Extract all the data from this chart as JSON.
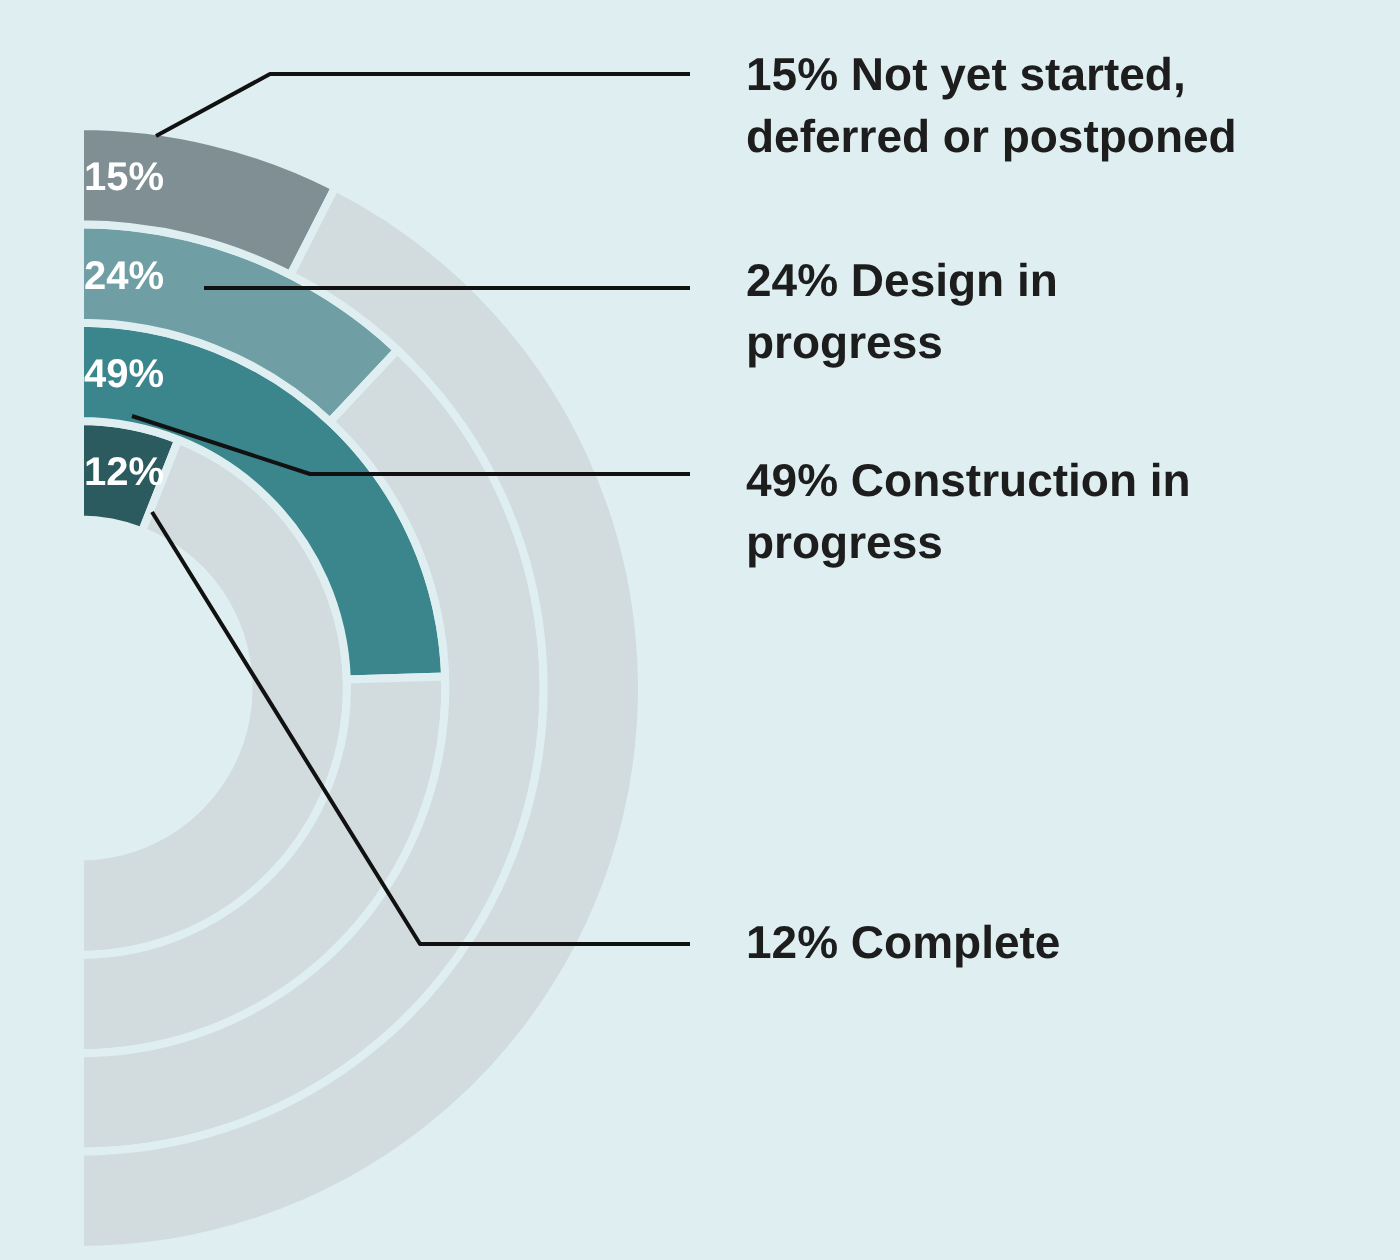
{
  "chart_data": {
    "type": "donut",
    "categories": [
      null,
      null
    ],
    "series": [
      {
        "name": "Not yet started, deferred or postponed",
        "values": [
          15,
          85
        ],
        "colors": [
          "#7f8f94",
          "#d2dcdf"
        ],
        "value_labels": [
          "15%",
          null
        ]
      },
      {
        "name": "Design in progress",
        "values": [
          24,
          76
        ],
        "colors": [
          "#6f9fa4",
          "#d2dcdf"
        ],
        "value_labels": [
          "24%",
          null
        ]
      },
      {
        "name": "Construction in progress",
        "values": [
          49,
          51
        ],
        "colors": [
          "#3b868c",
          "#d2dcdf"
        ],
        "value_labels": [
          "49%",
          null
        ]
      },
      {
        "name": "Complete",
        "values": [
          12,
          88
        ],
        "colors": [
          "#2b5b5f",
          "#d2dcdf"
        ],
        "value_labels": [
          "12%",
          null
        ]
      }
    ]
  }
}
